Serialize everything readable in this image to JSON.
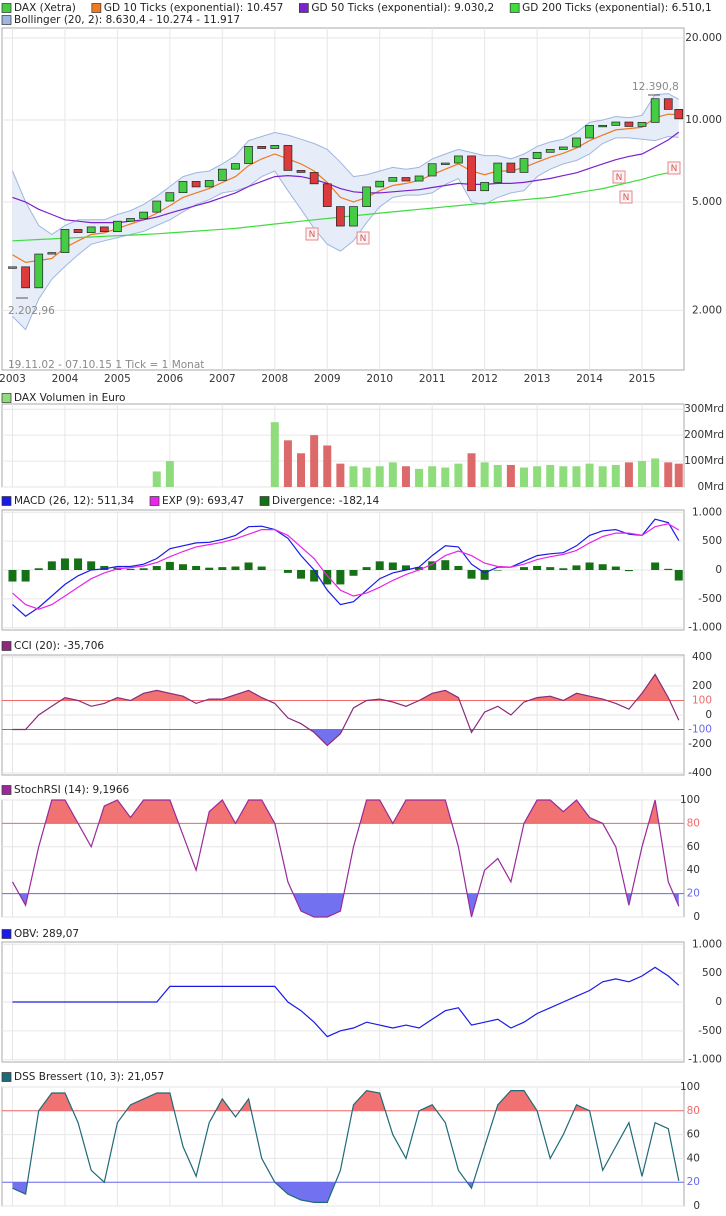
{
  "chart_data": [
    {
      "type": "candlestick",
      "x": [
        2003,
        2003.25,
        2003.5,
        2003.75,
        2004,
        2004.25,
        2004.5,
        2004.75,
        2005,
        2005.25,
        2005.5,
        2005.75,
        2006,
        2006.25,
        2006.5,
        2006.75,
        2007,
        2007.25,
        2007.5,
        2007.75,
        2008,
        2008.25,
        2008.5,
        2008.75,
        2009,
        2009.25,
        2009.5,
        2009.75,
        2010,
        2010.25,
        2010.5,
        2010.75,
        2011,
        2011.25,
        2011.5,
        2011.75,
        2012,
        2012.25,
        2012.5,
        2012.75,
        2013,
        2013.25,
        2013.5,
        2013.75,
        2014,
        2014.25,
        2014.5,
        2014.75,
        2015,
        2015.25,
        2015.5,
        2015.7
      ],
      "xlim": [
        2002.8,
        2015.8
      ],
      "xticks": [
        2003,
        2004,
        2005,
        2006,
        2007,
        2008,
        2009,
        2010,
        2011,
        2012,
        2013,
        2014,
        2015
      ],
      "log_scale": true,
      "ylim": [
        1208,
        21770
      ],
      "yticks": [
        {
          "value": 2000,
          "label": "2.000"
        },
        {
          "value": 5000,
          "label": "5.000"
        },
        {
          "value": 10000,
          "label": "10.000"
        },
        {
          "value": 20000,
          "label": "20.000"
        }
      ],
      "grid": true,
      "series": [
        {
          "name": "DAX (Xetra)",
          "color": "#44cc44",
          "down_color": "#dd3b3b",
          "values": [
            2890,
            2420,
            3220,
            3260,
            3965,
            3860,
            4050,
            3890,
            4250,
            4350,
            4590,
            5040,
            5410,
            5950,
            5680,
            6000,
            6600,
            6920,
            8000,
            7860,
            8070,
            6530,
            6420,
            5830,
            4810,
            4080,
            4810,
            5680,
            5960,
            6150,
            5970,
            6230,
            6910,
            6950,
            7380,
            5500,
            5900,
            6950,
            6420,
            7220,
            7610,
            7800,
            7960,
            8590,
            9550,
            9560,
            9830,
            9470,
            9800,
            11970,
            10940,
            10100
          ]
        },
        {
          "name": "GD 10 Ticks (exponential): 10.457",
          "color": "#f07a22",
          "values": [
            3200,
            3000,
            3050,
            3100,
            3400,
            3600,
            3800,
            3850,
            4000,
            4150,
            4300,
            4550,
            4850,
            5200,
            5400,
            5600,
            5900,
            6200,
            6800,
            7200,
            7500,
            7200,
            6900,
            6500,
            5900,
            5200,
            5000,
            5200,
            5500,
            5750,
            5850,
            6000,
            6300,
            6600,
            6900,
            6500,
            6300,
            6500,
            6500,
            6700,
            7000,
            7300,
            7550,
            7900,
            8400,
            8800,
            9200,
            9300,
            9400,
            10200,
            10500,
            10457
          ]
        },
        {
          "name": "GD 50 Ticks (exponential): 9.030,2",
          "color": "#7a22cc",
          "values": [
            5200,
            5000,
            4700,
            4500,
            4300,
            4250,
            4200,
            4200,
            4200,
            4250,
            4300,
            4400,
            4550,
            4700,
            4850,
            5000,
            5200,
            5400,
            5700,
            5950,
            6200,
            6250,
            6200,
            6050,
            5850,
            5600,
            5450,
            5400,
            5400,
            5450,
            5500,
            5550,
            5650,
            5750,
            5850,
            5800,
            5800,
            5850,
            5850,
            5900,
            6000,
            6100,
            6250,
            6400,
            6650,
            6900,
            7150,
            7350,
            7500,
            7950,
            8450,
            9030.2
          ]
        },
        {
          "name": "GD 200 Ticks (exponential): 6.510,1",
          "color": "#3fdc3f",
          "values": [
            3600,
            3620,
            3640,
            3660,
            3680,
            3700,
            3720,
            3740,
            3760,
            3780,
            3800,
            3820,
            3850,
            3880,
            3910,
            3940,
            3970,
            4000,
            4050,
            4100,
            4150,
            4200,
            4250,
            4300,
            4350,
            4400,
            4450,
            4500,
            4550,
            4600,
            4650,
            4700,
            4750,
            4800,
            4850,
            4900,
            4950,
            5000,
            5050,
            5100,
            5150,
            5200,
            5300,
            5400,
            5500,
            5600,
            5750,
            5900,
            6050,
            6250,
            6400,
            6510.1
          ]
        }
      ],
      "band": {
        "name": "Bollinger (20, 2): 8.630,4 - 10.274 - 11.917",
        "color": "#9fb6e0",
        "fill": "#e6edf8",
        "upper": [
          6500,
          5000,
          4100,
          3800,
          4100,
          4300,
          4300,
          4300,
          4500,
          4650,
          4900,
          5250,
          5700,
          6200,
          6400,
          6500,
          6900,
          7400,
          8400,
          8700,
          9000,
          8800,
          8500,
          8200,
          7800,
          7000,
          6200,
          6300,
          6500,
          6700,
          6600,
          6700,
          7200,
          7500,
          7800,
          7600,
          7400,
          7400,
          7200,
          7500,
          8000,
          8300,
          8500,
          9000,
          9800,
          10000,
          10300,
          10200,
          10400,
          12400,
          12500,
          11917
        ],
        "lower": [
          1900,
          1700,
          2200,
          2600,
          2900,
          3200,
          3500,
          3600,
          3700,
          3800,
          3900,
          4100,
          4300,
          4600,
          4900,
          5100,
          5400,
          5500,
          5700,
          6200,
          6500,
          5500,
          4700,
          4000,
          3500,
          3300,
          3600,
          4200,
          4800,
          5200,
          5300,
          5300,
          5400,
          5800,
          6100,
          5000,
          4900,
          5200,
          5400,
          5500,
          6200,
          6600,
          6900,
          7100,
          7500,
          8200,
          8600,
          8600,
          8500,
          8400,
          8700,
          8630.4
        ]
      },
      "annotations": [
        "12.390,8",
        "2.202,96",
        "19.11.02 - 07.10.15   1 Tick = 1 Monat"
      ],
      "markers": [
        "N",
        "N",
        "N",
        "N",
        "N"
      ]
    },
    {
      "type": "bar",
      "ylim": [
        0,
        320
      ],
      "yticks": [
        {
          "value": 0,
          "label": "0Mrd"
        },
        {
          "value": 100,
          "label": "100Mrd"
        },
        {
          "value": 200,
          "label": "200Mrd"
        },
        {
          "value": 300,
          "label": "300Mrd"
        }
      ],
      "grid": true,
      "series": [
        {
          "name": "DAX Volumen in Euro",
          "color": "#8fdc7c",
          "down_color": "#dc6a6a",
          "values": [
            null,
            null,
            null,
            null,
            null,
            null,
            null,
            null,
            null,
            null,
            null,
            60,
            100,
            null,
            null,
            null,
            null,
            null,
            null,
            null,
            250,
            180,
            130,
            200,
            160,
            90,
            80,
            75,
            80,
            95,
            80,
            70,
            80,
            75,
            90,
            130,
            95,
            85,
            85,
            75,
            80,
            85,
            80,
            80,
            90,
            80,
            85,
            95,
            100,
            110,
            95,
            90
          ]
        }
      ]
    },
    {
      "type": "line",
      "ylim": [
        -1040,
        1040
      ],
      "yticks": [
        {
          "value": -1000,
          "label": "-1.000"
        },
        -500,
        0,
        500,
        {
          "value": 1000,
          "label": "1.000"
        }
      ],
      "grid": true,
      "series": [
        {
          "name": "MACD (26, 12): 511,34",
          "color": "#1a1ae6",
          "values": [
            -600,
            -800,
            -650,
            -450,
            -250,
            -100,
            0,
            20,
            60,
            60,
            100,
            200,
            370,
            420,
            470,
            480,
            530,
            600,
            750,
            760,
            700,
            550,
            250,
            0,
            -350,
            -600,
            -550,
            -350,
            -150,
            -50,
            0,
            50,
            250,
            420,
            400,
            100,
            -50,
            50,
            50,
            150,
            250,
            280,
            300,
            420,
            600,
            680,
            700,
            620,
            600,
            880,
            820,
            511.34
          ]
        },
        {
          "name": "EXP (9): 693,47",
          "color": "#e825e8",
          "values": [
            -400,
            -600,
            -680,
            -600,
            -450,
            -300,
            -150,
            -50,
            20,
            40,
            70,
            130,
            230,
            320,
            400,
            440,
            480,
            540,
            620,
            700,
            700,
            600,
            400,
            200,
            -100,
            -350,
            -450,
            -400,
            -300,
            -180,
            -80,
            0,
            100,
            250,
            330,
            250,
            120,
            60,
            50,
            100,
            180,
            230,
            270,
            340,
            470,
            580,
            640,
            640,
            600,
            750,
            800,
            693.47
          ]
        },
        {
          "name": "Divergence: -182,14",
          "color": "#167016",
          "style": "bar",
          "values": [
            -200,
            -200,
            30,
            150,
            200,
            200,
            150,
            70,
            40,
            20,
            30,
            70,
            140,
            100,
            70,
            40,
            50,
            60,
            130,
            60,
            0,
            -50,
            -150,
            -200,
            -250,
            -250,
            -100,
            50,
            150,
            130,
            80,
            50,
            150,
            170,
            70,
            -150,
            -170,
            -10,
            0,
            50,
            70,
            50,
            30,
            80,
            130,
            100,
            60,
            -20,
            0,
            130,
            20,
            -182.14
          ]
        }
      ]
    },
    {
      "type": "line",
      "ylim": [
        -414,
        414
      ],
      "yticks": [
        -400,
        -200,
        -100,
        0,
        100,
        200,
        400
      ],
      "grid": true,
      "levels": [
        {
          "value": 100,
          "color": "#f06a6a"
        },
        {
          "value": -100,
          "color": "#6a6af0"
        }
      ],
      "series": [
        {
          "name": "CCI (20): -35,706",
          "color": "#8a2a7a",
          "values": [
            -100,
            -100,
            0,
            60,
            120,
            100,
            60,
            80,
            120,
            100,
            150,
            170,
            150,
            130,
            80,
            110,
            110,
            140,
            170,
            120,
            80,
            -20,
            -60,
            -120,
            -210,
            -130,
            50,
            100,
            110,
            90,
            60,
            100,
            150,
            170,
            120,
            -120,
            20,
            60,
            0,
            90,
            120,
            130,
            100,
            150,
            130,
            110,
            80,
            40,
            150,
            280,
            120,
            -35.706
          ]
        }
      ]
    },
    {
      "type": "line",
      "ylim": [
        0,
        100
      ],
      "yticks": [
        0,
        20,
        40,
        60,
        80,
        100
      ],
      "grid": true,
      "levels": [
        {
          "value": 80,
          "color": "#f06a6a"
        },
        {
          "value": 20,
          "color": "#6a6af0"
        }
      ],
      "series": [
        {
          "name": "StochRSI (14): 9,1966",
          "color": "#9a2a9a",
          "values": [
            30,
            10,
            60,
            100,
            100,
            80,
            60,
            95,
            100,
            85,
            100,
            100,
            100,
            70,
            40,
            90,
            100,
            80,
            100,
            100,
            80,
            30,
            5,
            0,
            0,
            5,
            60,
            100,
            100,
            80,
            100,
            100,
            100,
            100,
            60,
            0,
            40,
            50,
            30,
            80,
            100,
            100,
            90,
            100,
            85,
            80,
            60,
            10,
            60,
            100,
            30,
            9.1966
          ]
        }
      ]
    },
    {
      "type": "line",
      "ylim": [
        -1040,
        1040
      ],
      "yticks": [
        {
          "value": -1000,
          "label": "-1.000"
        },
        -500,
        0,
        500,
        {
          "value": 1000,
          "label": "1.000"
        }
      ],
      "grid": true,
      "series": [
        {
          "name": "OBV: 289,07",
          "color": "#1a1ae6",
          "values": [
            0,
            0,
            0,
            0,
            0,
            0,
            0,
            0,
            0,
            0,
            0,
            0,
            270,
            270,
            270,
            270,
            270,
            270,
            270,
            270,
            270,
            0,
            -150,
            -350,
            -600,
            -500,
            -450,
            -350,
            -400,
            -450,
            -400,
            -450,
            -300,
            -150,
            -100,
            -400,
            -350,
            -300,
            -450,
            -350,
            -200,
            -100,
            0,
            100,
            200,
            350,
            400,
            350,
            450,
            600,
            450,
            289.07
          ]
        }
      ]
    },
    {
      "type": "line",
      "ylim": [
        0,
        100
      ],
      "yticks": [
        0,
        20,
        40,
        60,
        80,
        100
      ],
      "grid": true,
      "levels": [
        {
          "value": 80,
          "color": "#f06a6a"
        },
        {
          "value": 20,
          "color": "#6a6af0"
        }
      ],
      "series": [
        {
          "name": "DSS Bressert (10, 3): 21,057",
          "color": "#1f6a78",
          "values": [
            15,
            10,
            80,
            95,
            95,
            70,
            30,
            20,
            70,
            85,
            90,
            95,
            95,
            50,
            25,
            70,
            90,
            75,
            90,
            40,
            20,
            10,
            5,
            3,
            3,
            30,
            85,
            97,
            95,
            60,
            40,
            80,
            85,
            70,
            30,
            15,
            50,
            85,
            97,
            97,
            80,
            40,
            60,
            85,
            80,
            30,
            50,
            70,
            25,
            70,
            65,
            21.057
          ]
        }
      ]
    }
  ]
}
